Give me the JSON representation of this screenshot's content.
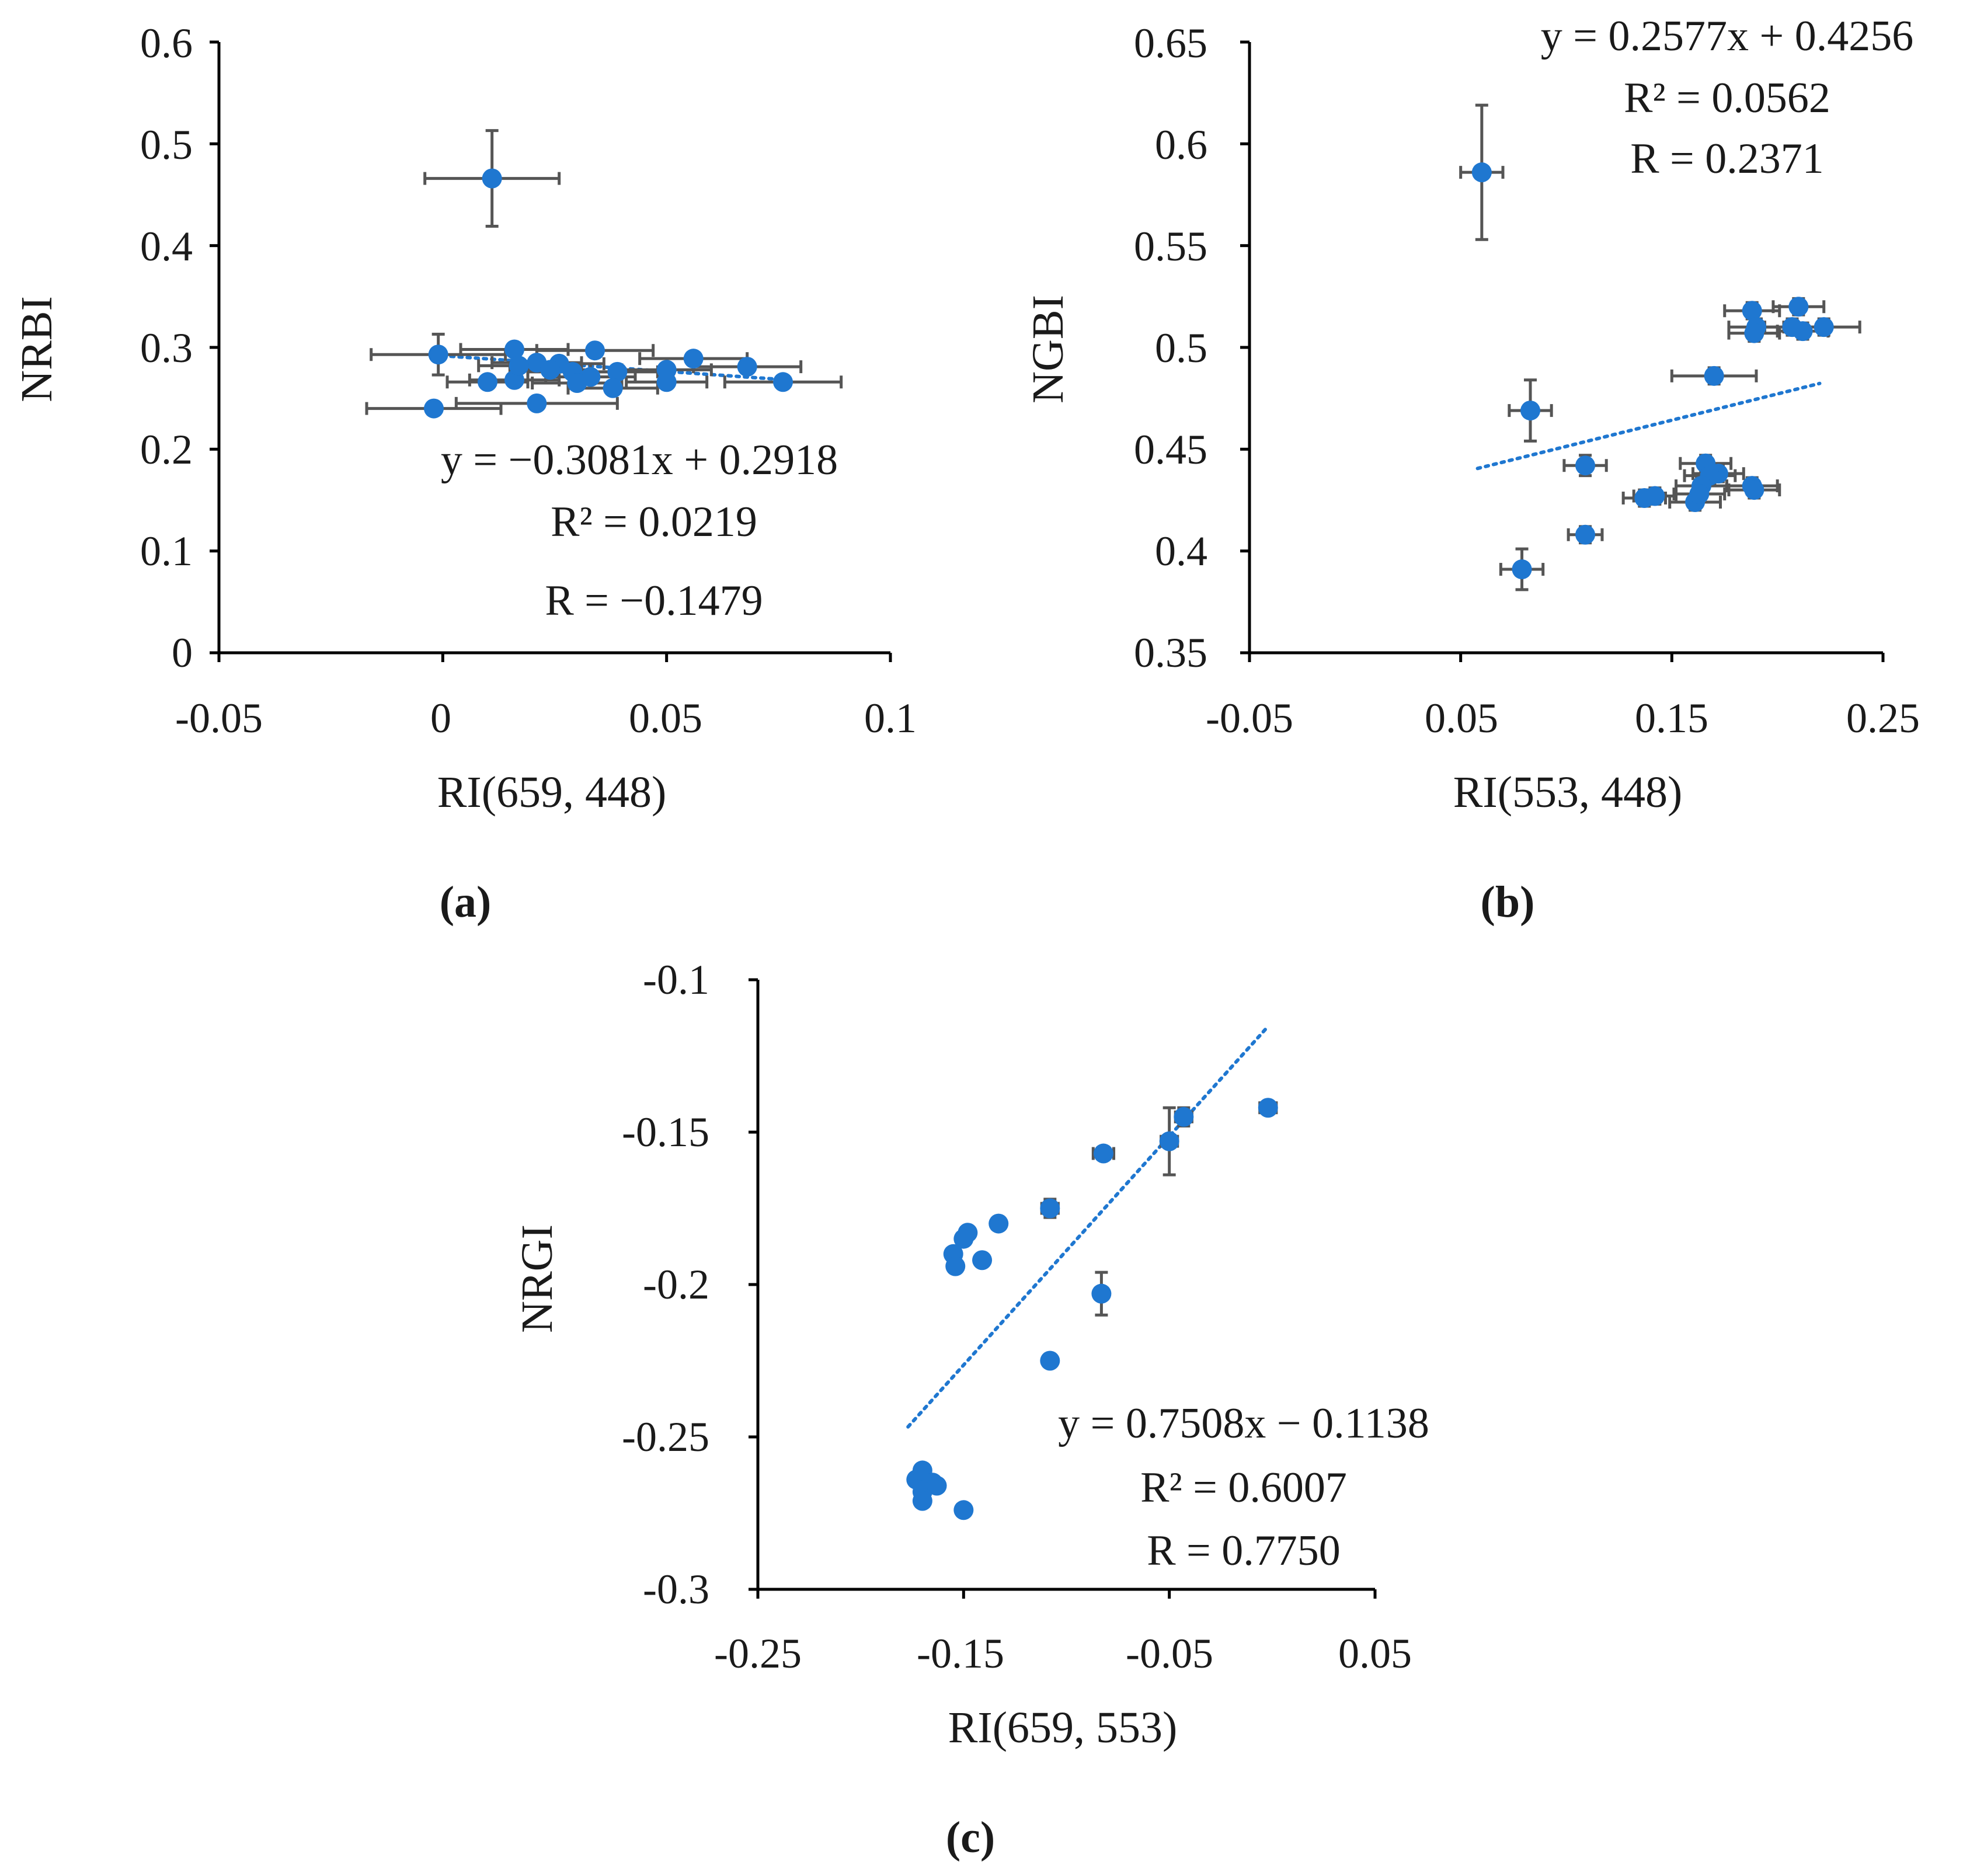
{
  "colors": {
    "marker": "#1f77d0",
    "error_bar": "#555555",
    "axis": "#000000"
  },
  "chart_data": [
    {
      "type": "scatter",
      "panel_label": "(a)",
      "xlabel": "RI(659, 448)",
      "ylabel": "NRBI",
      "xlim": [
        -0.05,
        0.1
      ],
      "ylim": [
        0,
        0.6
      ],
      "xticks": [
        -0.05,
        0,
        0.05,
        0.1
      ],
      "xtick_labels": [
        "-0.05",
        "0",
        "0.05",
        "0.1"
      ],
      "yticks": [
        0,
        0.1,
        0.2,
        0.3,
        0.4,
        0.5,
        0.6
      ],
      "ytick_labels": [
        "0",
        "0.1",
        "0.2",
        "0.3",
        "0.4",
        "0.5",
        "0.6"
      ],
      "trendline": {
        "slope": -0.3081,
        "intercept": 0.2918,
        "x_range": [
          0.0,
          0.077
        ]
      },
      "equation_lines": [
        "y = −0.3081x + 0.2918",
        "R² = 0.0219",
        "R = −0.1479"
      ],
      "points": [
        {
          "x": 0.011,
          "y": 0.466,
          "xerr": 0.015,
          "yerr": 0.047
        },
        {
          "x": -0.001,
          "y": 0.293,
          "xerr": 0.015,
          "yerr": 0.02
        },
        {
          "x": -0.002,
          "y": 0.24,
          "xerr": 0.015,
          "yerr": 0.006
        },
        {
          "x": 0.016,
          "y": 0.298,
          "xerr": 0.012,
          "yerr": 0.004
        },
        {
          "x": 0.034,
          "y": 0.297,
          "xerr": 0.013,
          "yerr": 0.004
        },
        {
          "x": 0.056,
          "y": 0.289,
          "xerr": 0.012,
          "yerr": 0.004
        },
        {
          "x": 0.068,
          "y": 0.281,
          "xerr": 0.012,
          "yerr": 0.004
        },
        {
          "x": 0.076,
          "y": 0.266,
          "xerr": 0.013,
          "yerr": 0.006
        },
        {
          "x": 0.021,
          "y": 0.285,
          "xerr": 0.01,
          "yerr": 0.004
        },
        {
          "x": 0.026,
          "y": 0.284,
          "xerr": 0.01,
          "yerr": 0.004
        },
        {
          "x": 0.024,
          "y": 0.278,
          "xerr": 0.009,
          "yerr": 0.004
        },
        {
          "x": 0.029,
          "y": 0.276,
          "xerr": 0.01,
          "yerr": 0.004
        },
        {
          "x": 0.033,
          "y": 0.271,
          "xerr": 0.01,
          "yerr": 0.004
        },
        {
          "x": 0.039,
          "y": 0.276,
          "xerr": 0.009,
          "yerr": 0.004
        },
        {
          "x": 0.05,
          "y": 0.278,
          "xerr": 0.01,
          "yerr": 0.004
        },
        {
          "x": 0.05,
          "y": 0.266,
          "xerr": 0.009,
          "yerr": 0.004
        },
        {
          "x": 0.03,
          "y": 0.265,
          "xerr": 0.01,
          "yerr": 0.004
        },
        {
          "x": 0.038,
          "y": 0.26,
          "xerr": 0.01,
          "yerr": 0.004
        },
        {
          "x": 0.016,
          "y": 0.268,
          "xerr": 0.01,
          "yerr": 0.004
        },
        {
          "x": 0.01,
          "y": 0.266,
          "xerr": 0.009,
          "yerr": 0.004
        },
        {
          "x": 0.017,
          "y": 0.282,
          "xerr": 0.009,
          "yerr": 0.004
        },
        {
          "x": 0.021,
          "y": 0.245,
          "xerr": 0.018,
          "yerr": 0.004
        }
      ]
    },
    {
      "type": "scatter",
      "panel_label": "(b)",
      "xlabel": "RI(553, 448)",
      "ylabel": "NGBI",
      "xlim": [
        -0.05,
        0.25
      ],
      "ylim": [
        0.35,
        0.65
      ],
      "xticks": [
        -0.05,
        0.05,
        0.15,
        0.25
      ],
      "xtick_labels": [
        "-0.05",
        "0.05",
        "0.15",
        "0.25"
      ],
      "yticks": [
        0.35,
        0.4,
        0.45,
        0.5,
        0.55,
        0.6,
        0.65
      ],
      "ytick_labels": [
        "0.35",
        "0.4",
        "0.45",
        "0.5",
        "0.55",
        "0.6",
        "0.65"
      ],
      "trendline": {
        "slope": 0.2577,
        "intercept": 0.4256,
        "x_range": [
          0.058,
          0.22
        ]
      },
      "equation_lines": [
        "y = 0.2577x + 0.4256",
        "R² = 0.0562",
        "R = 0.2371"
      ],
      "points": [
        {
          "x": 0.06,
          "y": 0.586,
          "xerr": 0.01,
          "yerr": 0.033
        },
        {
          "x": 0.083,
          "y": 0.469,
          "xerr": 0.01,
          "yerr": 0.015
        },
        {
          "x": 0.079,
          "y": 0.391,
          "xerr": 0.01,
          "yerr": 0.01
        },
        {
          "x": 0.109,
          "y": 0.442,
          "xerr": 0.01,
          "yerr": 0.005
        },
        {
          "x": 0.109,
          "y": 0.408,
          "xerr": 0.008,
          "yerr": 0.004
        },
        {
          "x": 0.17,
          "y": 0.486,
          "xerr": 0.02,
          "yerr": 0.004
        },
        {
          "x": 0.188,
          "y": 0.518,
          "xerr": 0.013,
          "yerr": 0.004
        },
        {
          "x": 0.21,
          "y": 0.52,
          "xerr": 0.012,
          "yerr": 0.004
        },
        {
          "x": 0.19,
          "y": 0.51,
          "xerr": 0.013,
          "yerr": 0.004
        },
        {
          "x": 0.207,
          "y": 0.51,
          "xerr": 0.013,
          "yerr": 0.004
        },
        {
          "x": 0.222,
          "y": 0.51,
          "xerr": 0.017,
          "yerr": 0.004
        },
        {
          "x": 0.189,
          "y": 0.507,
          "xerr": 0.012,
          "yerr": 0.004
        },
        {
          "x": 0.212,
          "y": 0.508,
          "xerr": 0.012,
          "yerr": 0.004
        },
        {
          "x": 0.166,
          "y": 0.443,
          "xerr": 0.012,
          "yerr": 0.004
        },
        {
          "x": 0.172,
          "y": 0.438,
          "xerr": 0.012,
          "yerr": 0.004
        },
        {
          "x": 0.168,
          "y": 0.437,
          "xerr": 0.012,
          "yerr": 0.004
        },
        {
          "x": 0.164,
          "y": 0.432,
          "xerr": 0.012,
          "yerr": 0.004
        },
        {
          "x": 0.188,
          "y": 0.432,
          "xerr": 0.012,
          "yerr": 0.004
        },
        {
          "x": 0.189,
          "y": 0.43,
          "xerr": 0.012,
          "yerr": 0.004
        },
        {
          "x": 0.137,
          "y": 0.426,
          "xerr": 0.01,
          "yerr": 0.004
        },
        {
          "x": 0.142,
          "y": 0.427,
          "xerr": 0.01,
          "yerr": 0.004
        },
        {
          "x": 0.161,
          "y": 0.424,
          "xerr": 0.012,
          "yerr": 0.004
        },
        {
          "x": 0.163,
          "y": 0.428,
          "xerr": 0.012,
          "yerr": 0.004
        }
      ]
    },
    {
      "type": "scatter",
      "panel_label": "(c)",
      "xlabel": "RI(659, 553)",
      "ylabel": "NRGI",
      "xlim": [
        -0.25,
        0.05
      ],
      "ylim": [
        -0.3,
        -0.1
      ],
      "xticks": [
        -0.25,
        -0.15,
        -0.05,
        0.05
      ],
      "xtick_labels": [
        "-0.25",
        "-0.15",
        "-0.05",
        "0.05"
      ],
      "yticks": [
        -0.3,
        -0.25,
        -0.2,
        -0.15,
        -0.1
      ],
      "ytick_labels": [
        "-0.3",
        "-0.25",
        "-0.2",
        "-0.15",
        "-0.1"
      ],
      "trendline": {
        "slope": 0.7508,
        "intercept": -0.1138,
        "x_range": [
          -0.177,
          -0.002
        ]
      },
      "equation_lines": [
        "y = 0.7508x − 0.1138",
        "R² = 0.6007",
        "R = 0.7750"
      ],
      "points": [
        {
          "x": -0.002,
          "y": -0.142,
          "xerr": 0.004,
          "yerr": 0.002
        },
        {
          "x": -0.043,
          "y": -0.145,
          "xerr": 0.004,
          "yerr": 0.003
        },
        {
          "x": -0.05,
          "y": -0.153,
          "xerr": 0.004,
          "yerr": 0.011
        },
        {
          "x": -0.082,
          "y": -0.157,
          "xerr": 0.005,
          "yerr": 0.002
        },
        {
          "x": -0.108,
          "y": -0.175,
          "xerr": 0.004,
          "yerr": 0.003
        },
        {
          "x": -0.133,
          "y": -0.18,
          "xerr": 0.003,
          "yerr": 0.002
        },
        {
          "x": -0.148,
          "y": -0.183,
          "xerr": 0.003,
          "yerr": 0.002
        },
        {
          "x": -0.15,
          "y": -0.185,
          "xerr": 0.003,
          "yerr": 0.002
        },
        {
          "x": -0.141,
          "y": -0.192,
          "xerr": 0.003,
          "yerr": 0.002
        },
        {
          "x": -0.155,
          "y": -0.19,
          "xerr": 0.003,
          "yerr": 0.002
        },
        {
          "x": -0.154,
          "y": -0.194,
          "xerr": 0.003,
          "yerr": 0.002
        },
        {
          "x": -0.083,
          "y": -0.203,
          "xerr": 0.003,
          "yerr": 0.007
        },
        {
          "x": -0.108,
          "y": -0.225,
          "xerr": 0.003,
          "yerr": 0.002
        },
        {
          "x": -0.173,
          "y": -0.264,
          "xerr": 0.003,
          "yerr": 0.002
        },
        {
          "x": -0.17,
          "y": -0.261,
          "xerr": 0.003,
          "yerr": 0.002
        },
        {
          "x": -0.165,
          "y": -0.265,
          "xerr": 0.003,
          "yerr": 0.002
        },
        {
          "x": -0.17,
          "y": -0.268,
          "xerr": 0.003,
          "yerr": 0.002
        },
        {
          "x": -0.163,
          "y": -0.266,
          "xerr": 0.003,
          "yerr": 0.002
        },
        {
          "x": -0.17,
          "y": -0.271,
          "xerr": 0.003,
          "yerr": 0.002
        },
        {
          "x": -0.15,
          "y": -0.274,
          "xerr": 0.003,
          "yerr": 0.002
        }
      ]
    }
  ]
}
